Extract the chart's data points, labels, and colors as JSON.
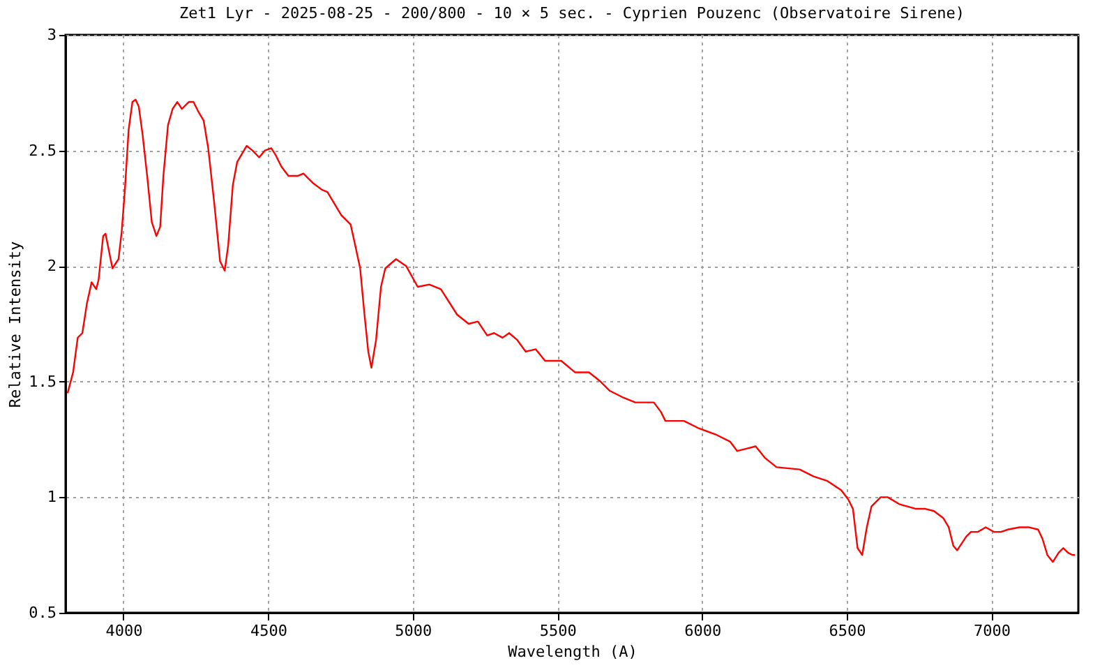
{
  "chart_data": {
    "type": "line",
    "title": "Zet1 Lyr - 2025-08-25 - 200/800 - 10 × 5 sec. - Cyprien Pouzenc (Observatoire Sirene)",
    "xlabel": "Wavelength (A)",
    "ylabel": "Relative Intensity",
    "x": [
      3807,
      3826,
      3842,
      3858,
      3874,
      3890,
      3906,
      3914,
      3930,
      3938,
      3962,
      3983,
      3994,
      4005,
      4018,
      4031,
      4042,
      4053,
      4066,
      4082,
      4098,
      4114,
      4127,
      4138,
      4154,
      4170,
      4186,
      4202,
      4226,
      4242,
      4258,
      4277,
      4293,
      4314,
      4334,
      4350,
      4362,
      4378,
      4393,
      4426,
      4446,
      4469,
      4489,
      4511,
      4526,
      4546,
      4570,
      4602,
      4622,
      4654,
      4686,
      4705,
      4753,
      4785,
      4801,
      4818,
      4833,
      4846,
      4857,
      4873,
      4890,
      4905,
      4942,
      4977,
      5017,
      5057,
      5097,
      5153,
      5193,
      5225,
      5257,
      5281,
      5310,
      5333,
      5361,
      5390,
      5425,
      5457,
      5513,
      5561,
      5609,
      5649,
      5681,
      5729,
      5769,
      5833,
      5857,
      5873,
      5937,
      5985,
      6049,
      6097,
      6121,
      6153,
      6185,
      6217,
      6257,
      6337,
      6385,
      6433,
      6481,
      6505,
      6521,
      6537,
      6553,
      6569,
      6585,
      6617,
      6641,
      6681,
      6737,
      6769,
      6801,
      6833,
      6852,
      6868,
      6881,
      6913,
      6929,
      6953,
      6980,
      7008,
      7032,
      7056,
      7097,
      7128,
      7161,
      7176,
      7193,
      7212,
      7232,
      7248,
      7264,
      7280,
      7288
    ],
    "series": [
      {
        "color": "#ff0000",
        "values": [
          1.45,
          1.54,
          1.69,
          1.71,
          1.84,
          1.93,
          1.9,
          1.94,
          2.13,
          2.14,
          1.99,
          2.03,
          2.15,
          2.33,
          2.59,
          2.71,
          2.72,
          2.69,
          2.57,
          2.39,
          2.19,
          2.13,
          2.17,
          2.39,
          2.61,
          2.68,
          2.71,
          2.68,
          2.71,
          2.71,
          2.67,
          2.63,
          2.51,
          2.27,
          2.02,
          1.98,
          2.09,
          2.35,
          2.45,
          2.52,
          2.5,
          2.47,
          2.5,
          2.51,
          2.48,
          2.43,
          2.39,
          2.39,
          2.4,
          2.36,
          2.33,
          2.32,
          2.22,
          2.18,
          2.09,
          1.99,
          1.79,
          1.63,
          1.56,
          1.68,
          1.91,
          1.99,
          2.03,
          2.0,
          1.91,
          1.92,
          1.9,
          1.79,
          1.75,
          1.76,
          1.7,
          1.71,
          1.69,
          1.71,
          1.68,
          1.63,
          1.64,
          1.59,
          1.59,
          1.54,
          1.54,
          1.5,
          1.46,
          1.43,
          1.41,
          1.41,
          1.37,
          1.33,
          1.33,
          1.3,
          1.27,
          1.24,
          1.2,
          1.21,
          1.22,
          1.17,
          1.13,
          1.12,
          1.09,
          1.07,
          1.03,
          0.99,
          0.95,
          0.78,
          0.75,
          0.87,
          0.96,
          1.0,
          1.0,
          0.97,
          0.95,
          0.95,
          0.94,
          0.91,
          0.87,
          0.79,
          0.77,
          0.83,
          0.85,
          0.85,
          0.87,
          0.85,
          0.85,
          0.86,
          0.87,
          0.87,
          0.86,
          0.82,
          0.75,
          0.72,
          0.76,
          0.78,
          0.76,
          0.75,
          0.75
        ]
      }
    ],
    "xlim": [
      3800,
      7300
    ],
    "xticks": [
      4000,
      4500,
      5000,
      5500,
      6000,
      6500,
      7000
    ],
    "ylim": [
      0.5,
      3
    ],
    "yticks": [
      0.5,
      1,
      1.5,
      2,
      2.5,
      3
    ],
    "grid": true,
    "marker": "none",
    "line_style": "solid"
  }
}
